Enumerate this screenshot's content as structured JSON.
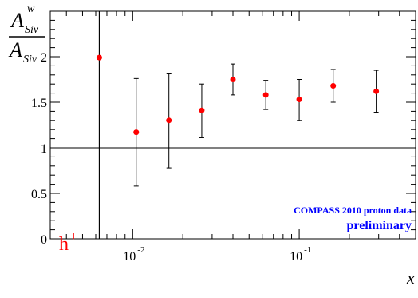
{
  "chart_data": {
    "type": "scatter",
    "title": "",
    "ylabel": {
      "num_main": "A",
      "num_sup": "w",
      "num_sub": "Siv",
      "den_main": "A",
      "den_sub": "Siv"
    },
    "xlabel": "x",
    "x_scale": "log",
    "xlim": [
      0.0032,
      0.5
    ],
    "ylim": [
      0,
      2.5
    ],
    "y_ticks": [
      "0",
      "0.5",
      "1",
      "1.5",
      "2"
    ],
    "x_ticks": [
      {
        "value": 0.01,
        "base": "10",
        "exp": "-2"
      },
      {
        "value": 0.1,
        "base": "10",
        "exp": "-1"
      }
    ],
    "reference_line_y": 1,
    "reference_line_x": 0.0063,
    "series": [
      {
        "color": "#ff0000",
        "errorbar_color": "#000000",
        "points": [
          {
            "x": 0.0063,
            "y": 1.99,
            "err_low": 1.99,
            "err_high": 0.51
          },
          {
            "x": 0.0105,
            "y": 1.17,
            "err_low": 0.59,
            "err_high": 0.59
          },
          {
            "x": 0.0165,
            "y": 1.3,
            "err_low": 0.52,
            "err_high": 0.52
          },
          {
            "x": 0.026,
            "y": 1.41,
            "err_low": 0.3,
            "err_high": 0.29
          },
          {
            "x": 0.04,
            "y": 1.75,
            "err_low": 0.17,
            "err_high": 0.17
          },
          {
            "x": 0.063,
            "y": 1.58,
            "err_low": 0.16,
            "err_high": 0.16
          },
          {
            "x": 0.1,
            "y": 1.53,
            "err_low": 0.23,
            "err_high": 0.22
          },
          {
            "x": 0.16,
            "y": 1.68,
            "err_low": 0.18,
            "err_high": 0.18
          },
          {
            "x": 0.29,
            "y": 1.62,
            "err_low": 0.23,
            "err_high": 0.23
          }
        ]
      }
    ],
    "annotations": {
      "hadron_label": "h",
      "hadron_sup": "+",
      "hadron_color": "#ff0000",
      "dataset_label": "COMPASS 2010 proton data",
      "status_label": "preliminary",
      "annotation_color": "#0000ff"
    }
  }
}
